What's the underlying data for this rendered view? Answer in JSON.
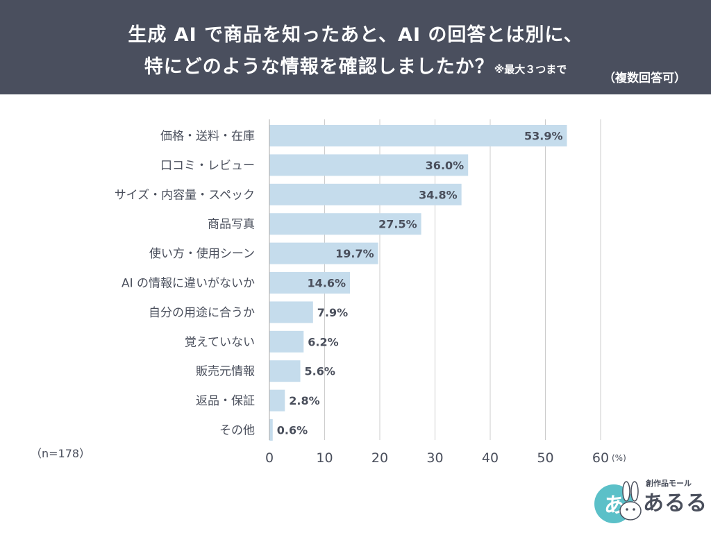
{
  "header": {
    "title_line1": "生成 AI で商品を知ったあと、AI の回答とは別に、",
    "title_line2": "特にどのような情報を確認しましたか？",
    "note": "※最大３つまで",
    "subtitle": "（複数回答可）"
  },
  "sample_size": "（n=178）",
  "brand": {
    "tagline": "創作品モール",
    "name": "あるる",
    "circle_text": "あ",
    "accent_color": "#5bc0c8"
  },
  "chart_data": {
    "type": "bar",
    "orientation": "horizontal",
    "categories": [
      "価格・送料・在庫",
      "口コミ・レビュー",
      "サイズ・内容量・スペック",
      "商品写真",
      "使い方・使用シーン",
      "AI の情報に違いがないか",
      "自分の用途に合うか",
      "覚えていない",
      "販売元情報",
      "返品・保証",
      "その他"
    ],
    "values": [
      53.9,
      36.0,
      34.8,
      27.5,
      19.7,
      14.6,
      7.9,
      6.2,
      5.6,
      2.8,
      0.6
    ],
    "value_labels": [
      "53.9%",
      "36.0%",
      "34.8%",
      "27.5%",
      "19.7%",
      "14.6%",
      "7.9%",
      "6.2%",
      "5.6%",
      "2.8%",
      "0.6%"
    ],
    "xlim": [
      0,
      60
    ],
    "xticks": [
      0,
      10,
      20,
      30,
      40,
      50,
      60
    ],
    "unit": "(%)",
    "grid": true,
    "bar_color": "#c5dcec",
    "grid_color": "#cccccc"
  }
}
